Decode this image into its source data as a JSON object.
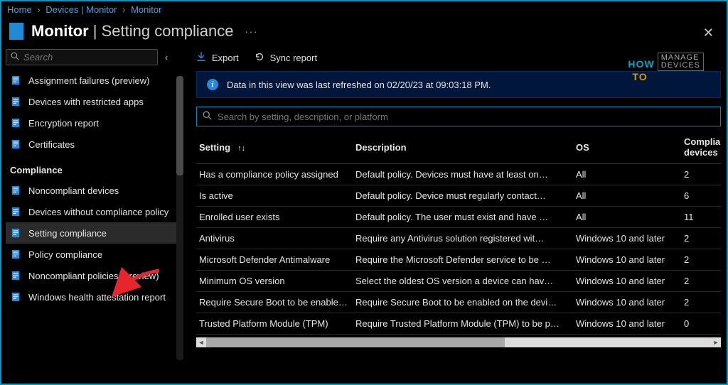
{
  "breadcrumb": {
    "home": "Home",
    "devices": "Devices | Monitor",
    "monitor": "Monitor"
  },
  "header": {
    "title_main": "Monitor",
    "title_sub": "Setting compliance"
  },
  "sidebar": {
    "search_placeholder": "Search",
    "items_top": [
      {
        "label": "Assignment failures (preview)"
      },
      {
        "label": "Devices with restricted apps"
      },
      {
        "label": "Encryption report"
      },
      {
        "label": "Certificates"
      }
    ],
    "section": "Compliance",
    "items_comp": [
      {
        "label": "Noncompliant devices"
      },
      {
        "label": "Devices without compliance policy"
      },
      {
        "label": "Setting compliance",
        "selected": true
      },
      {
        "label": "Policy compliance"
      },
      {
        "label": "Noncompliant policies (preview)"
      },
      {
        "label": "Windows health attestation report"
      }
    ]
  },
  "toolbar": {
    "export": "Export",
    "sync": "Sync report"
  },
  "banner": {
    "text": "Data in this view was last refreshed on 02/20/23 at 09:03:18 PM."
  },
  "main_search": {
    "placeholder": "Search by setting, description, or platform"
  },
  "table": {
    "columns": {
      "setting": "Setting",
      "description": "Description",
      "os": "OS",
      "compliant": "Compliant devices"
    },
    "rows": [
      {
        "setting": "Has a compliance policy assigned",
        "description": "Default policy. Devices must have at least one compliance policy assigned…",
        "os": "All",
        "compliant": "2"
      },
      {
        "setting": "Is active",
        "description": "Default policy. Device must regularly contact Intune…",
        "os": "All",
        "compliant": "6"
      },
      {
        "setting": "Enrolled user exists",
        "description": "Default policy. The user must exist and have a valid license…",
        "os": "All",
        "compliant": "11"
      },
      {
        "setting": "Antivirus",
        "description": "Require any Antivirus solution registered with Windows Security Center…",
        "os": "Windows 10 and later",
        "compliant": "2"
      },
      {
        "setting": "Microsoft Defender Antimalware",
        "description": "Require the Microsoft Defender service to be enabled…",
        "os": "Windows 10 and later",
        "compliant": "2"
      },
      {
        "setting": "Minimum OS version",
        "description": "Select the oldest OS version a device can have…",
        "os": "Windows 10 and later",
        "compliant": "2"
      },
      {
        "setting": "Require Secure Boot to be enabled on the device",
        "description": "Require Secure Boot to be enabled on the device…",
        "os": "Windows 10 and later",
        "compliant": "2"
      },
      {
        "setting": "Trusted Platform Module (TPM)",
        "description": "Require Trusted Platform Module (TPM) to be present…",
        "os": "Windows 10 and later",
        "compliant": "0"
      }
    ]
  },
  "watermark": {
    "how": "HOW",
    "to": "TO",
    "line1": "MANAGE",
    "line2": "DEVICES"
  },
  "colors": {
    "border": "#0098c6",
    "link": "#4aa0e6",
    "banner_bg": "#00163a",
    "banner_border": "#01285f",
    "icon_blue": "#2b88d8",
    "selected_bg": "#2b2b2b",
    "main_search_border": "#0085c3",
    "arrow_red": "#e6252c"
  }
}
